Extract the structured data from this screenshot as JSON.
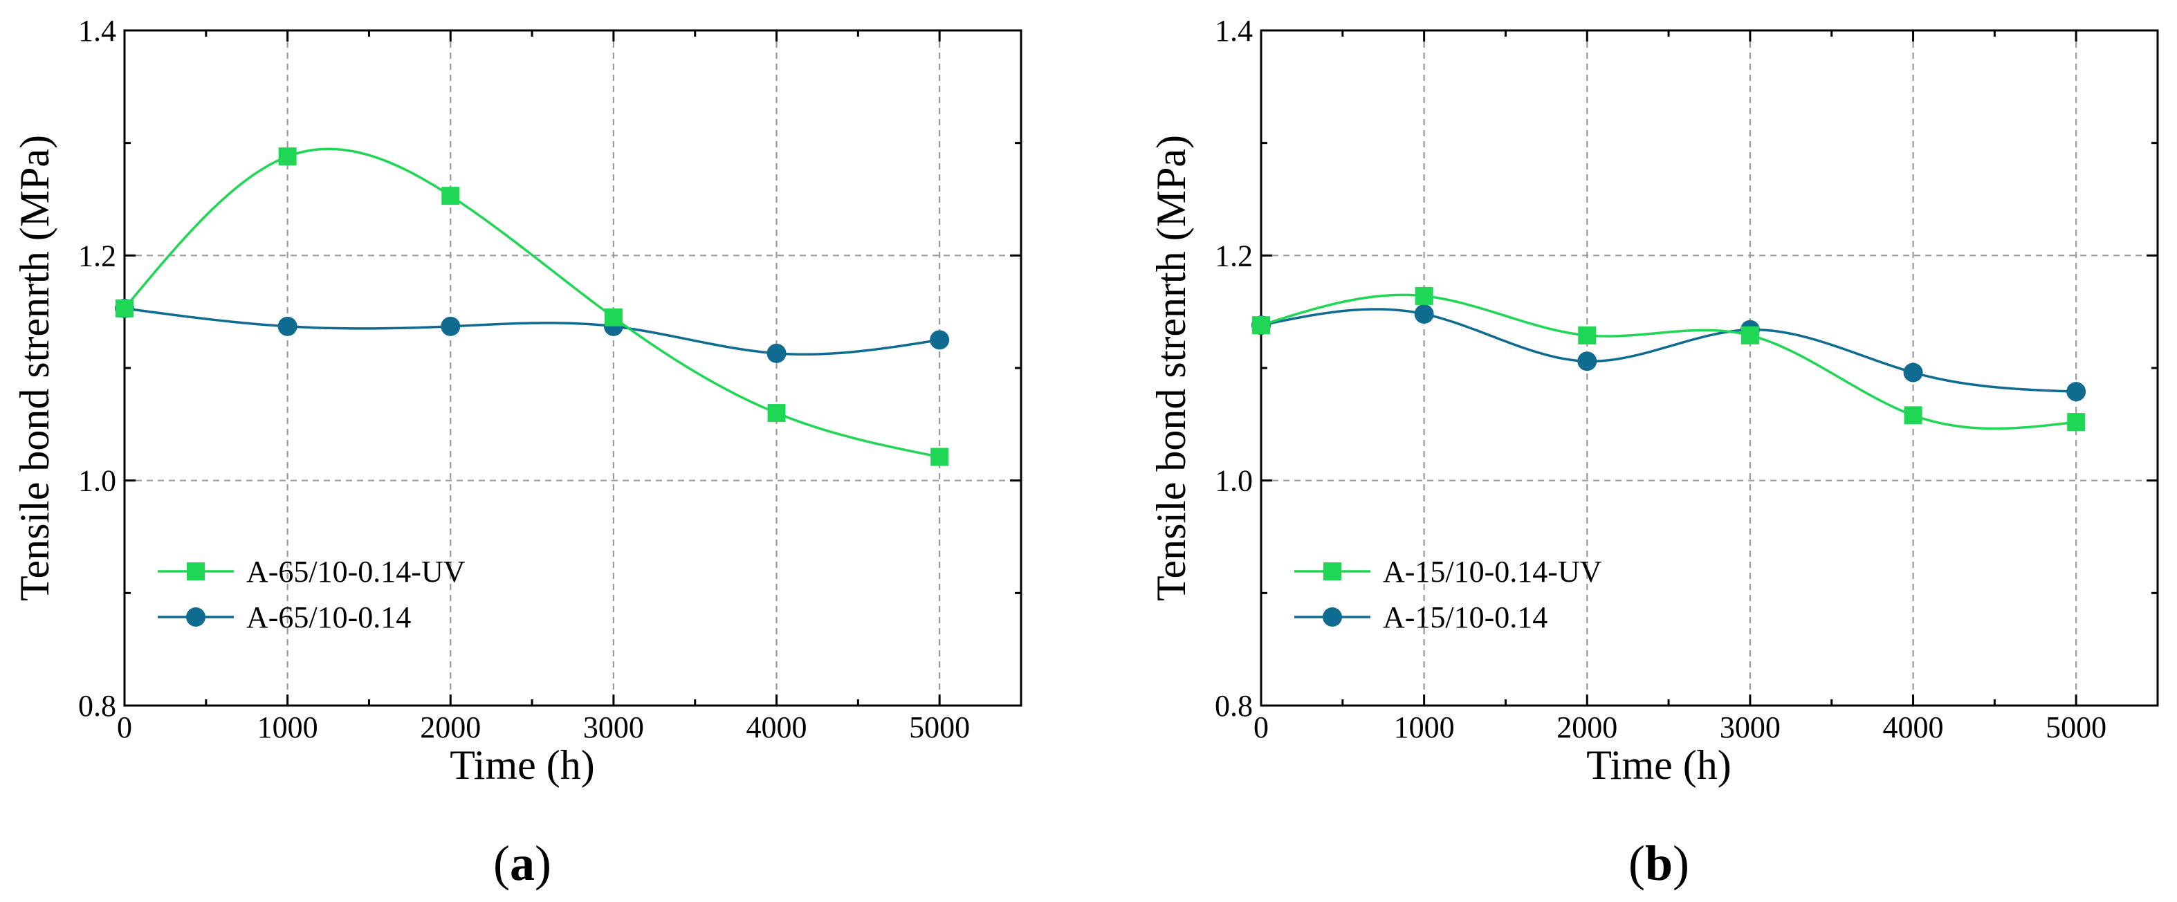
{
  "chart_data": [
    {
      "type": "line",
      "panel_label": "a",
      "xlabel": "Time (h)",
      "ylabel": "Tensile bond strenrth (MPa)",
      "xlim": [
        0,
        5500
      ],
      "ylim": [
        0.8,
        1.4
      ],
      "x_ticks": [
        0,
        1000,
        2000,
        3000,
        4000,
        5000
      ],
      "x_tick_labels": [
        "0",
        "1000",
        "2000",
        "3000",
        "4000",
        "5000"
      ],
      "y_ticks": [
        0.8,
        1.0,
        1.2,
        1.4
      ],
      "y_tick_labels": [
        "0.8",
        "1.0",
        "1.2",
        "1.4"
      ],
      "grid": true,
      "legend_position": "bottom-left",
      "x": [
        0,
        1000,
        2000,
        3000,
        4000,
        5000
      ],
      "series": [
        {
          "name": "A-65/10-0.14-UV",
          "marker": "square",
          "color": "#1fd655",
          "values": [
            1.153,
            1.288,
            1.253,
            1.145,
            1.06,
            1.021
          ]
        },
        {
          "name": "A-65/10-0.14",
          "marker": "circle",
          "color": "#0f6b8f",
          "values": [
            1.153,
            1.137,
            1.137,
            1.137,
            1.113,
            1.125
          ]
        }
      ]
    },
    {
      "type": "line",
      "panel_label": "b",
      "xlabel": "Time (h)",
      "ylabel": "Tensile bond strenrth (MPa)",
      "xlim": [
        0,
        5500
      ],
      "ylim": [
        0.8,
        1.4
      ],
      "x_ticks": [
        0,
        1000,
        2000,
        3000,
        4000,
        5000
      ],
      "x_tick_labels": [
        "0",
        "1000",
        "2000",
        "3000",
        "4000",
        "5000"
      ],
      "y_ticks": [
        0.8,
        1.0,
        1.2,
        1.4
      ],
      "y_tick_labels": [
        "0.8",
        "1.0",
        "1.2",
        "1.4"
      ],
      "grid": true,
      "legend_position": "bottom-left",
      "x": [
        0,
        1000,
        2000,
        3000,
        4000,
        5000
      ],
      "series": [
        {
          "name": "A-15/10-0.14-UV",
          "marker": "square",
          "color": "#1fd655",
          "values": [
            1.138,
            1.164,
            1.129,
            1.129,
            1.058,
            1.052
          ]
        },
        {
          "name": "A-15/10-0.14",
          "marker": "circle",
          "color": "#0f6b8f",
          "values": [
            1.138,
            1.148,
            1.106,
            1.134,
            1.096,
            1.079
          ]
        }
      ]
    }
  ]
}
